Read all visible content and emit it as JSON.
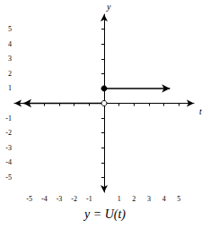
{
  "chart_data": {
    "type": "line",
    "title": "y = U(t)",
    "x_label": "t",
    "y_label": "y",
    "xlim": [
      -6,
      6
    ],
    "ylim": [
      -6,
      6
    ],
    "xticks": [
      -5,
      -4,
      -3,
      -2,
      -1,
      1,
      2,
      3,
      4,
      5
    ],
    "yticks": [
      -5,
      -4,
      -3,
      -2,
      -1,
      1,
      2,
      3,
      4,
      5
    ],
    "grid": false,
    "color": "#000000",
    "series": [
      {
        "x": [
          -5.4,
          0
        ],
        "values": [
          0,
          0
        ],
        "marker": "open"
      },
      {
        "x": [
          0,
          4.4
        ],
        "values": [
          1,
          1
        ],
        "marker": "closed"
      }
    ]
  }
}
